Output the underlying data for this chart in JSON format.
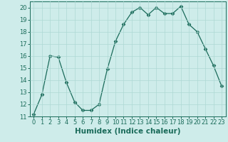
{
  "x": [
    0,
    1,
    2,
    3,
    4,
    5,
    6,
    7,
    8,
    9,
    10,
    11,
    12,
    13,
    14,
    15,
    16,
    17,
    18,
    19,
    20,
    21,
    22,
    23
  ],
  "y": [
    11.2,
    12.8,
    16.0,
    15.9,
    13.8,
    12.2,
    11.5,
    11.5,
    12.0,
    14.9,
    17.2,
    18.6,
    19.6,
    20.0,
    19.4,
    20.0,
    19.5,
    19.5,
    20.1,
    18.6,
    18.0,
    16.6,
    15.2,
    13.5
  ],
  "line_color": "#1a6b5a",
  "marker": "D",
  "marker_size": 2.5,
  "bg_color": "#ceecea",
  "grid_color": "#aed8d4",
  "xlabel": "Humidex (Indice chaleur)",
  "xlim": [
    -0.5,
    23.5
  ],
  "ylim": [
    11,
    20.5
  ],
  "yticks": [
    11,
    12,
    13,
    14,
    15,
    16,
    17,
    18,
    19,
    20
  ],
  "xticks": [
    0,
    1,
    2,
    3,
    4,
    5,
    6,
    7,
    8,
    9,
    10,
    11,
    12,
    13,
    14,
    15,
    16,
    17,
    18,
    19,
    20,
    21,
    22,
    23
  ],
  "tick_color": "#1a6b5a",
  "label_color": "#1a6b5a",
  "xlabel_fontsize": 7.5,
  "tick_fontsize": 6.0
}
